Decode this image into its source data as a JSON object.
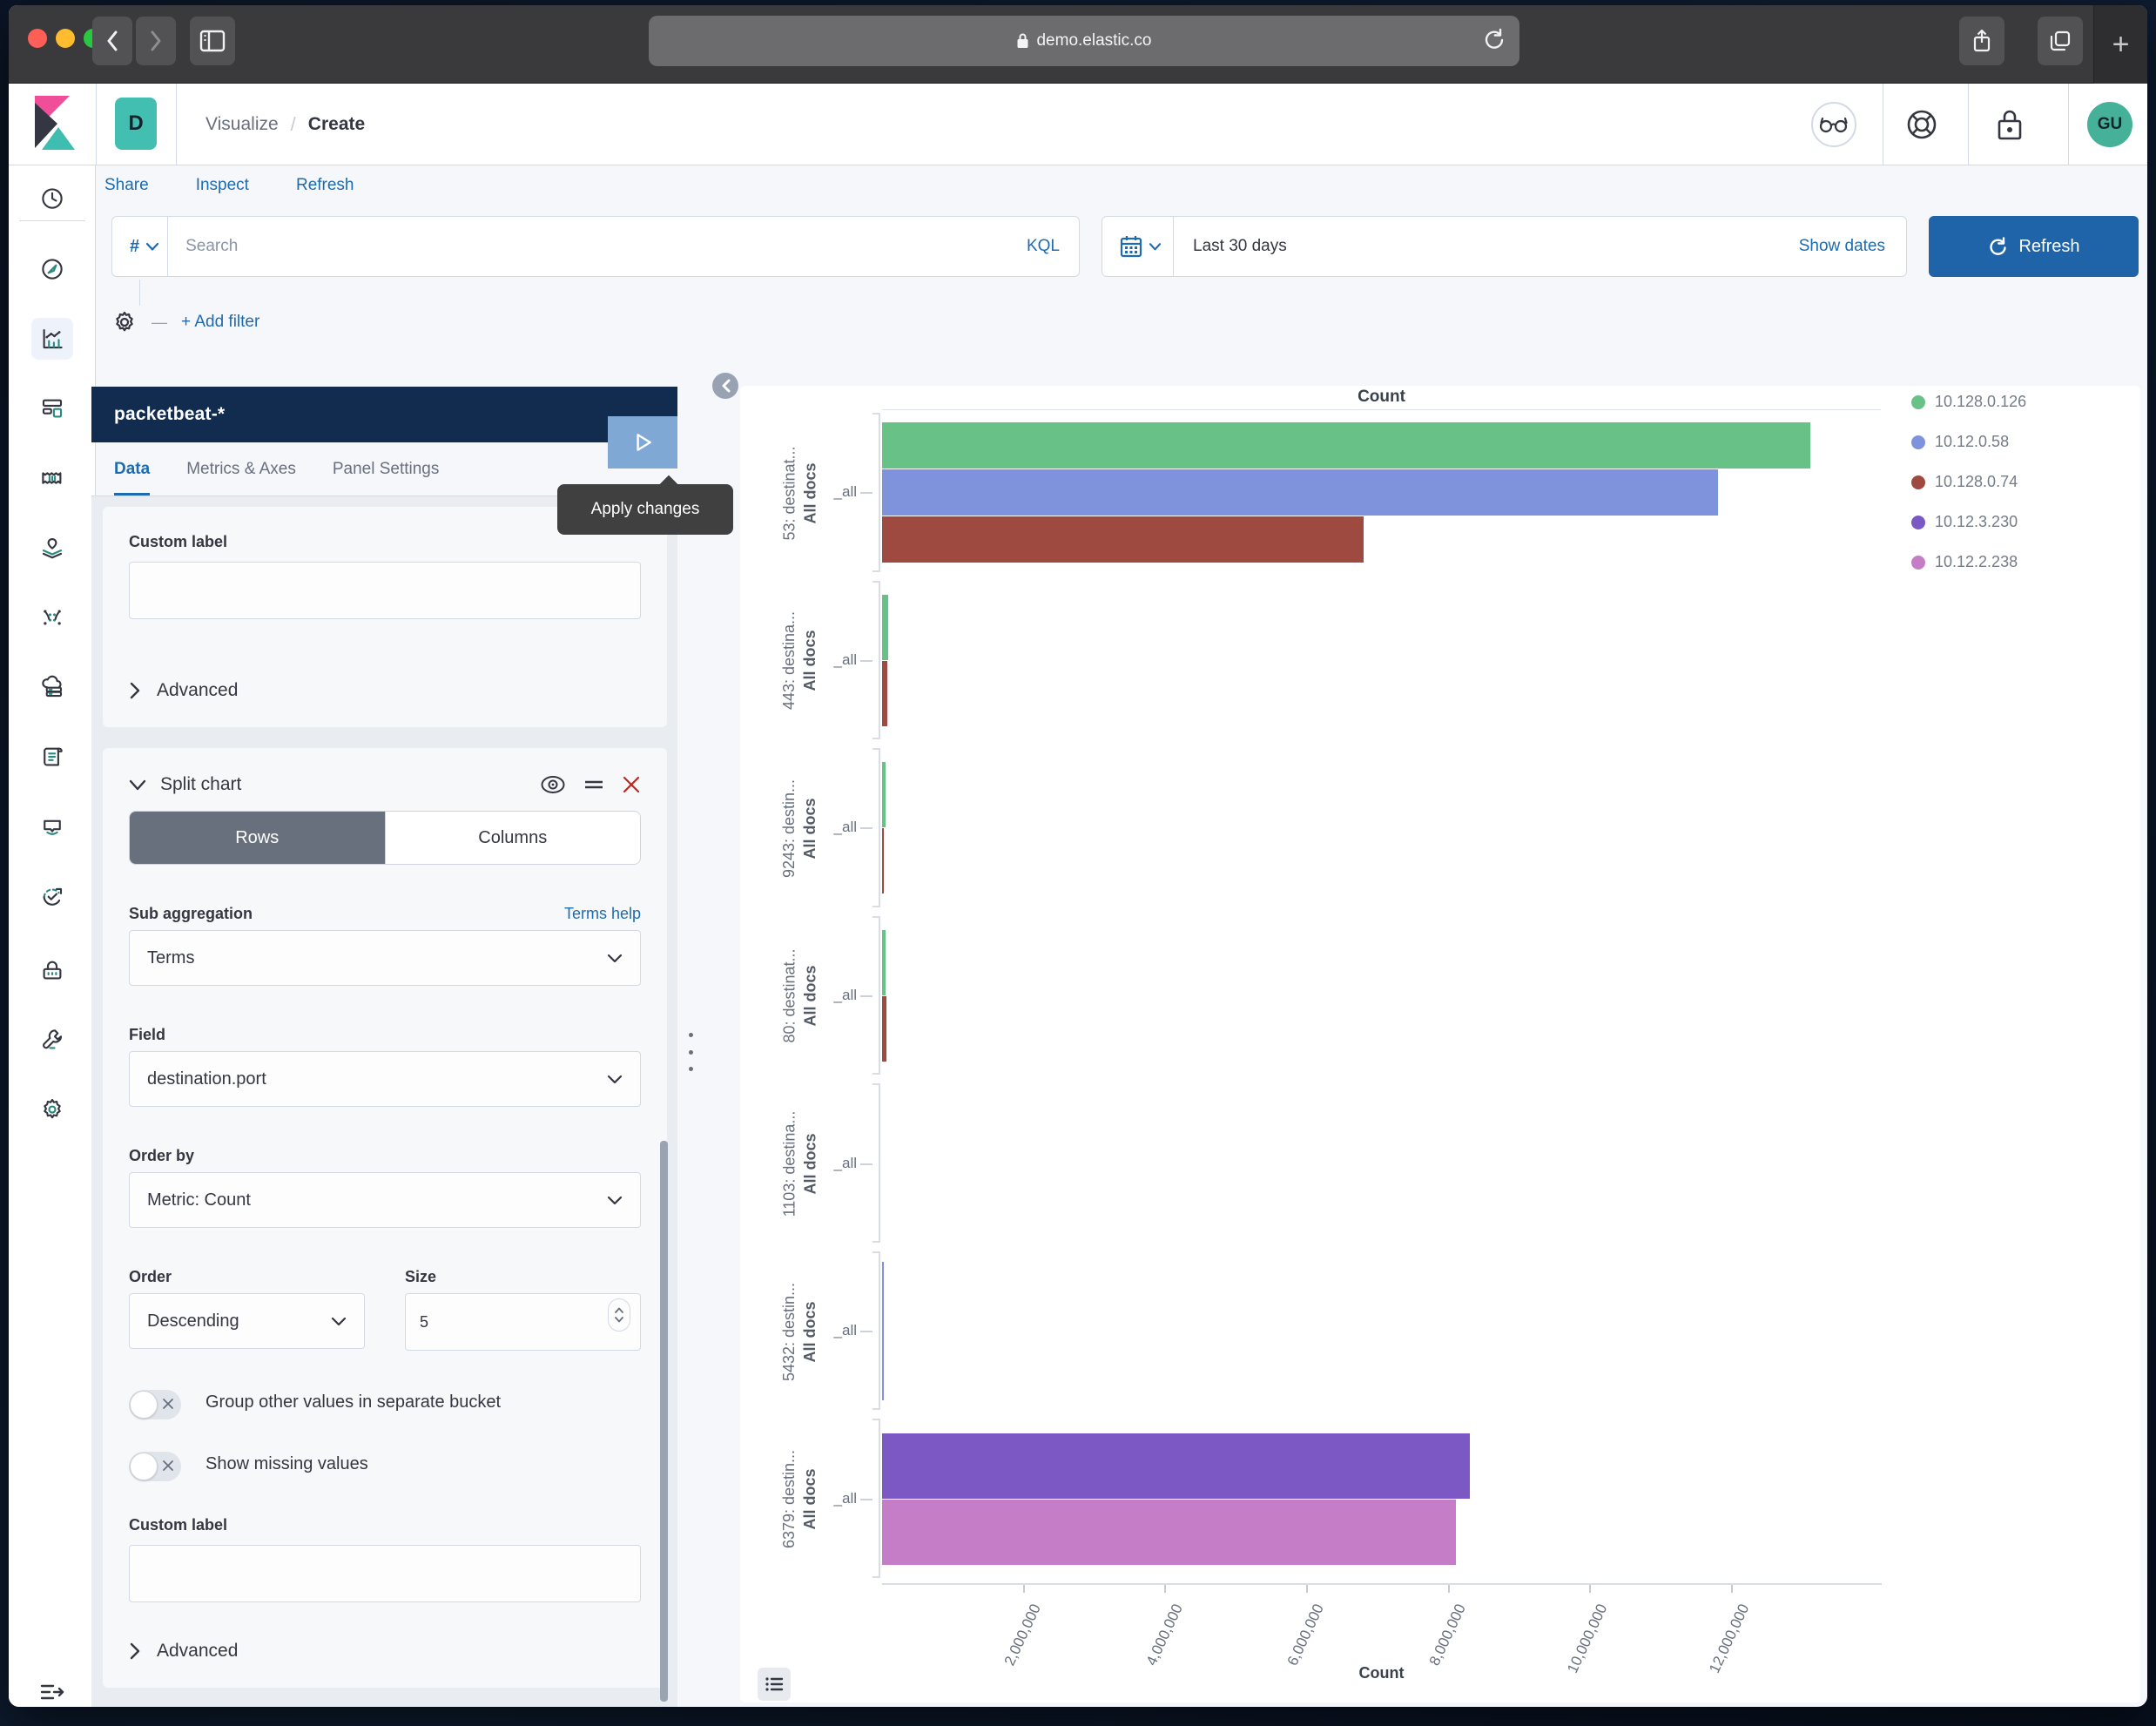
{
  "browser": {
    "url": "demo.elastic.co",
    "new_tab_label": "+",
    "icons": [
      "back-icon",
      "forward-icon",
      "sidebar-toggle-icon",
      "lock-icon",
      "reload-icon",
      "share-icon",
      "tabs-icon"
    ]
  },
  "header": {
    "space_initial": "D",
    "breadcrumb": {
      "parent": "Visualize",
      "separator": "/",
      "current": "Create"
    },
    "avatar_initials": "GU",
    "icons": [
      "glasses-icon",
      "help-icon",
      "lock-icon"
    ]
  },
  "action_links": {
    "share": "Share",
    "inspect": "Inspect",
    "refresh": "Refresh"
  },
  "query_bar": {
    "filter_prefix": "#",
    "search_placeholder": "Search",
    "query_language": "KQL",
    "time_range": "Last 30 days",
    "show_dates_label": "Show dates",
    "refresh_label": "Refresh",
    "add_filter_label": "+ Add filter"
  },
  "sidebar": {
    "items": [
      {
        "name": "recently-viewed",
        "icon": "clock-icon",
        "active": false
      },
      {
        "name": "discover",
        "icon": "compass-icon",
        "active": false
      },
      {
        "name": "visualize",
        "icon": "chart-icon",
        "active": true
      },
      {
        "name": "dashboard",
        "icon": "dashboard-icon",
        "active": false
      },
      {
        "name": "canvas",
        "icon": "canvas-icon",
        "active": false
      },
      {
        "name": "maps",
        "icon": "map-pin-icon",
        "active": false
      },
      {
        "name": "machine-learning",
        "icon": "ml-dots-icon",
        "active": false
      },
      {
        "name": "logs",
        "icon": "cloud-icon",
        "active": false
      },
      {
        "name": "docs",
        "icon": "scroll-icon",
        "active": false
      },
      {
        "name": "uptime",
        "icon": "uptime-icon",
        "active": false
      },
      {
        "name": "apm",
        "icon": "apm-check-icon",
        "active": false
      },
      {
        "name": "security",
        "icon": "lock-icon",
        "active": false
      },
      {
        "name": "dev-tools",
        "icon": "wrench-icon",
        "active": false
      },
      {
        "name": "management",
        "icon": "gear-icon",
        "active": false
      }
    ],
    "collapse_icon": "collapse-menu-icon"
  },
  "editor": {
    "index_pattern": "packetbeat-*",
    "tabs": {
      "data": "Data",
      "metrics_axes": "Metrics & Axes",
      "panel_settings": "Panel Settings"
    },
    "active_tab": "Data",
    "apply_tooltip": "Apply changes",
    "metric_section": {
      "custom_label": {
        "label": "Custom label",
        "value": ""
      },
      "advanced_label": "Advanced"
    },
    "bucket_section": {
      "title": "Split chart",
      "layout": {
        "rows": "Rows",
        "columns": "Columns",
        "selected": "Rows"
      },
      "sub_aggregation": {
        "label": "Sub aggregation",
        "help_link": "Terms help",
        "value": "Terms"
      },
      "field": {
        "label": "Field",
        "value": "destination.port"
      },
      "order_by": {
        "label": "Order by",
        "value": "Metric: Count"
      },
      "order": {
        "label": "Order",
        "value": "Descending"
      },
      "size": {
        "label": "Size",
        "value": "5"
      },
      "group_other_label": "Group other values in separate bucket",
      "show_missing_label": "Show missing values",
      "custom_label": {
        "label": "Custom label",
        "value": ""
      },
      "advanced_label": "Advanced"
    }
  },
  "chart_data": {
    "type": "bar",
    "orientation": "horizontal",
    "title": "Count",
    "xlabel": "Count",
    "value_axis_max": 14100000,
    "grid": false,
    "x_ticks": [
      {
        "value": 2000000,
        "label": "2,000,000"
      },
      {
        "value": 4000000,
        "label": "4,000,000"
      },
      {
        "value": 6000000,
        "label": "6,000,000"
      },
      {
        "value": 8000000,
        "label": "8,000,000"
      },
      {
        "value": 10000000,
        "label": "10,000,000"
      },
      {
        "value": 12000000,
        "label": "12,000,000"
      }
    ],
    "legend": {
      "position": "right",
      "items": [
        {
          "label": "10.128.0.126",
          "color": "#68c287"
        },
        {
          "label": "10.12.0.58",
          "color": "#7e93db"
        },
        {
          "label": "10.128.0.74",
          "color": "#9e4a41"
        },
        {
          "label": "10.12.3.230",
          "color": "#7c58c5"
        },
        {
          "label": "10.12.2.238",
          "color": "#c67dc7"
        }
      ]
    },
    "rows": [
      {
        "category": "53: destinat...",
        "sub_label": "All docs",
        "tick_label": "_all",
        "bars": [
          {
            "series": "10.128.0.126",
            "value": 13100000
          },
          {
            "series": "10.12.0.58",
            "value": 11800000
          },
          {
            "series": "10.128.0.74",
            "value": 6800000
          }
        ]
      },
      {
        "category": "443: destina...",
        "sub_label": "All docs",
        "tick_label": "_all",
        "bars": [
          {
            "series": "10.128.0.126",
            "value": 80000
          },
          {
            "series": "10.128.0.74",
            "value": 75000
          }
        ]
      },
      {
        "category": "9243: destin...",
        "sub_label": "All docs",
        "tick_label": "_all",
        "bars": [
          {
            "series": "10.128.0.126",
            "value": 55000
          },
          {
            "series": "10.128.0.74",
            "value": 12000
          }
        ]
      },
      {
        "category": "80: destinat...",
        "sub_label": "All docs",
        "tick_label": "_all",
        "bars": [
          {
            "series": "10.128.0.126",
            "value": 45000
          },
          {
            "series": "10.128.0.74",
            "value": 65000
          }
        ]
      },
      {
        "category": "1103: destina...",
        "sub_label": "All docs",
        "tick_label": "_all",
        "bars": []
      },
      {
        "category": "5432: destin...",
        "sub_label": "All docs",
        "tick_label": "_all",
        "bars": [
          {
            "series": "10.12.0.58",
            "value": 30000
          }
        ]
      },
      {
        "category": "6379: destin...",
        "sub_label": "All docs",
        "tick_label": "_all",
        "bars": [
          {
            "series": "10.12.3.230",
            "value": 8300000
          },
          {
            "series": "10.12.2.238",
            "value": 8100000
          }
        ]
      }
    ]
  }
}
